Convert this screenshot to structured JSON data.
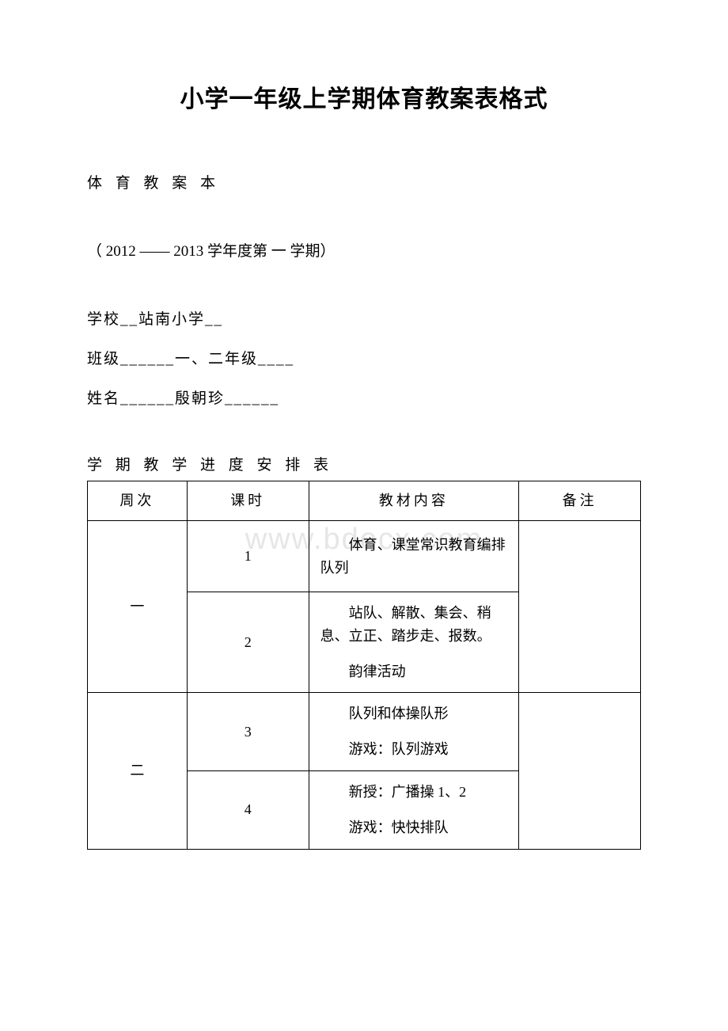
{
  "watermark": "www.bdocx.com",
  "title": "小学一年级上学期体育教案表格式",
  "subtitle": "体 育 教 案 本",
  "year_line": "（ 2012 —— 2013 学年度第 一 学期）",
  "school_line": "学校__站南小学__",
  "class_line": "班级______一、二年级____",
  "name_line": "姓名______殷朝珍______",
  "table_title": "学 期 教 学 进 度 安 排 表",
  "headers": {
    "week": "周次",
    "lesson": "课时",
    "content": "教材内容",
    "note": "备注"
  },
  "rows": [
    {
      "week": "一",
      "lessons": [
        {
          "num": "1",
          "paras": [
            "体育、课堂常识教育编排队列"
          ]
        },
        {
          "num": "2",
          "paras": [
            "站队、解散、集会、稍息、立正、踏步走、报数。",
            "韵律活动"
          ]
        }
      ]
    },
    {
      "week": "二",
      "lessons": [
        {
          "num": "3",
          "paras": [
            "队列和体操队形",
            "游戏：队列游戏"
          ]
        },
        {
          "num": "4",
          "paras": [
            "新授：广播操 1、2",
            "游戏：快快排队"
          ]
        }
      ]
    }
  ],
  "colors": {
    "text": "#000000",
    "background": "#ffffff",
    "border": "#000000",
    "watermark": "rgba(200,200,200,0.45)"
  },
  "typography": {
    "title_fontsize": 30,
    "body_fontsize": 19,
    "table_fontsize": 18,
    "font_family": "SimSun"
  }
}
